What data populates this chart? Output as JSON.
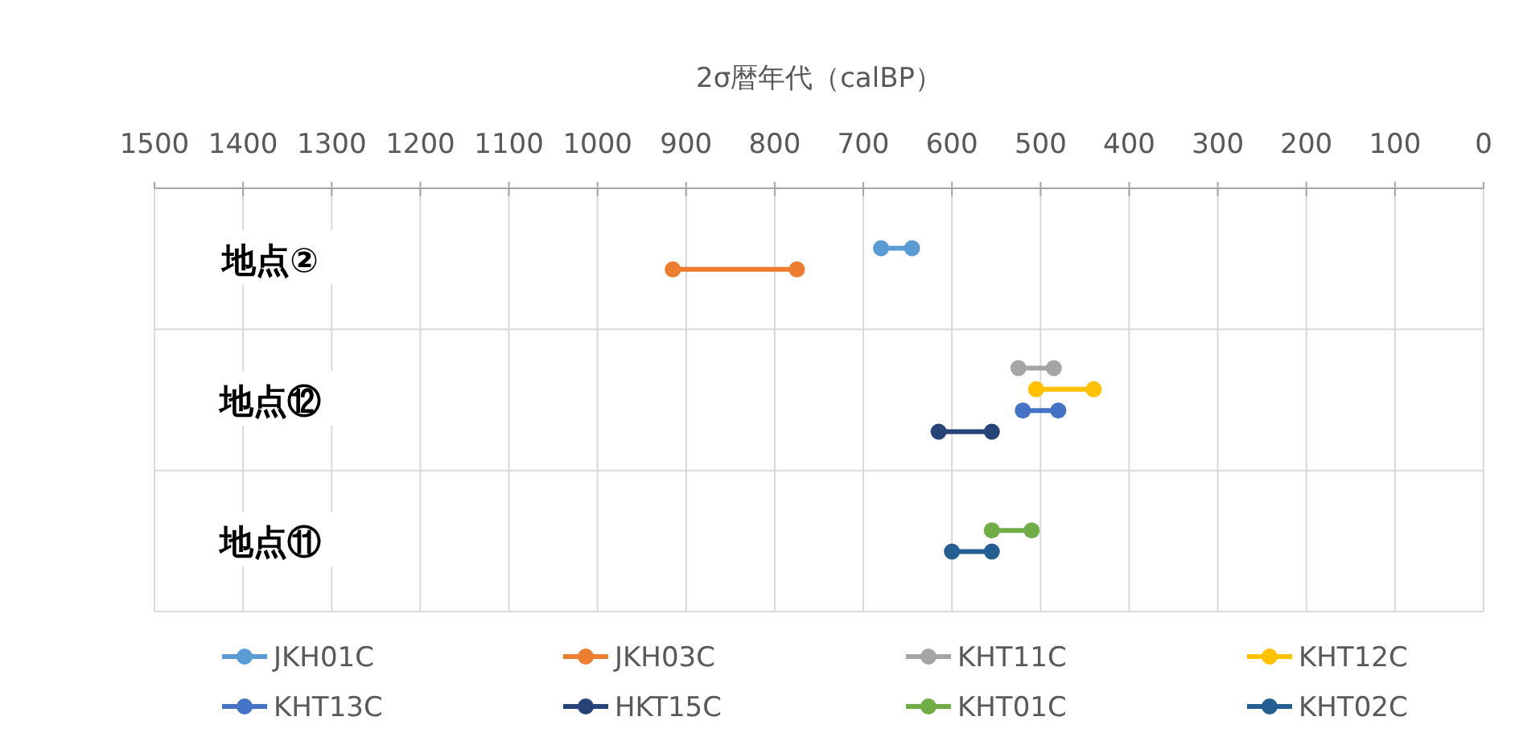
{
  "chart_data": {
    "type": "bar",
    "orientation": "horizontal",
    "xlabel": "2σ暦年代（calBP）",
    "categories": [
      "地点②",
      "地点⑫",
      "地点⑪"
    ],
    "xlim": [
      1500,
      0
    ],
    "xticks": [
      1500,
      1400,
      1300,
      1200,
      1100,
      1000,
      900,
      800,
      700,
      600,
      500,
      400,
      300,
      200,
      100,
      0
    ],
    "grid": true,
    "legend": "bottom",
    "marker": "circle",
    "series": [
      {
        "name": "JKH01C",
        "color": "#5b9bd5",
        "base": [
          645,
          null,
          null
        ],
        "values": [
          35,
          null,
          null
        ]
      },
      {
        "name": "JKH03C",
        "color": "#ed7d31",
        "base": [
          775,
          null,
          null
        ],
        "values": [
          140,
          null,
          null
        ]
      },
      {
        "name": "KHT11C",
        "color": "#a5a5a5",
        "base": [
          null,
          485,
          null
        ],
        "values": [
          null,
          40,
          null
        ]
      },
      {
        "name": "KHT12C",
        "color": "#ffc000",
        "base": [
          null,
          440,
          null
        ],
        "values": [
          null,
          65,
          null
        ]
      },
      {
        "name": "KHT13C",
        "color": "#4472c4",
        "base": [
          null,
          480,
          null
        ],
        "values": [
          null,
          40,
          null
        ]
      },
      {
        "name": "HKT15C",
        "color": "#264478",
        "base": [
          null,
          555,
          null
        ],
        "values": [
          null,
          60,
          null
        ]
      },
      {
        "name": "KHT01C",
        "color": "#70ad47",
        "base": [
          null,
          null,
          510
        ],
        "values": [
          null,
          null,
          45
        ]
      },
      {
        "name": "KHT02C",
        "color": "#255e91",
        "base": [
          null,
          null,
          555
        ],
        "values": [
          null,
          null,
          45
        ]
      }
    ]
  }
}
